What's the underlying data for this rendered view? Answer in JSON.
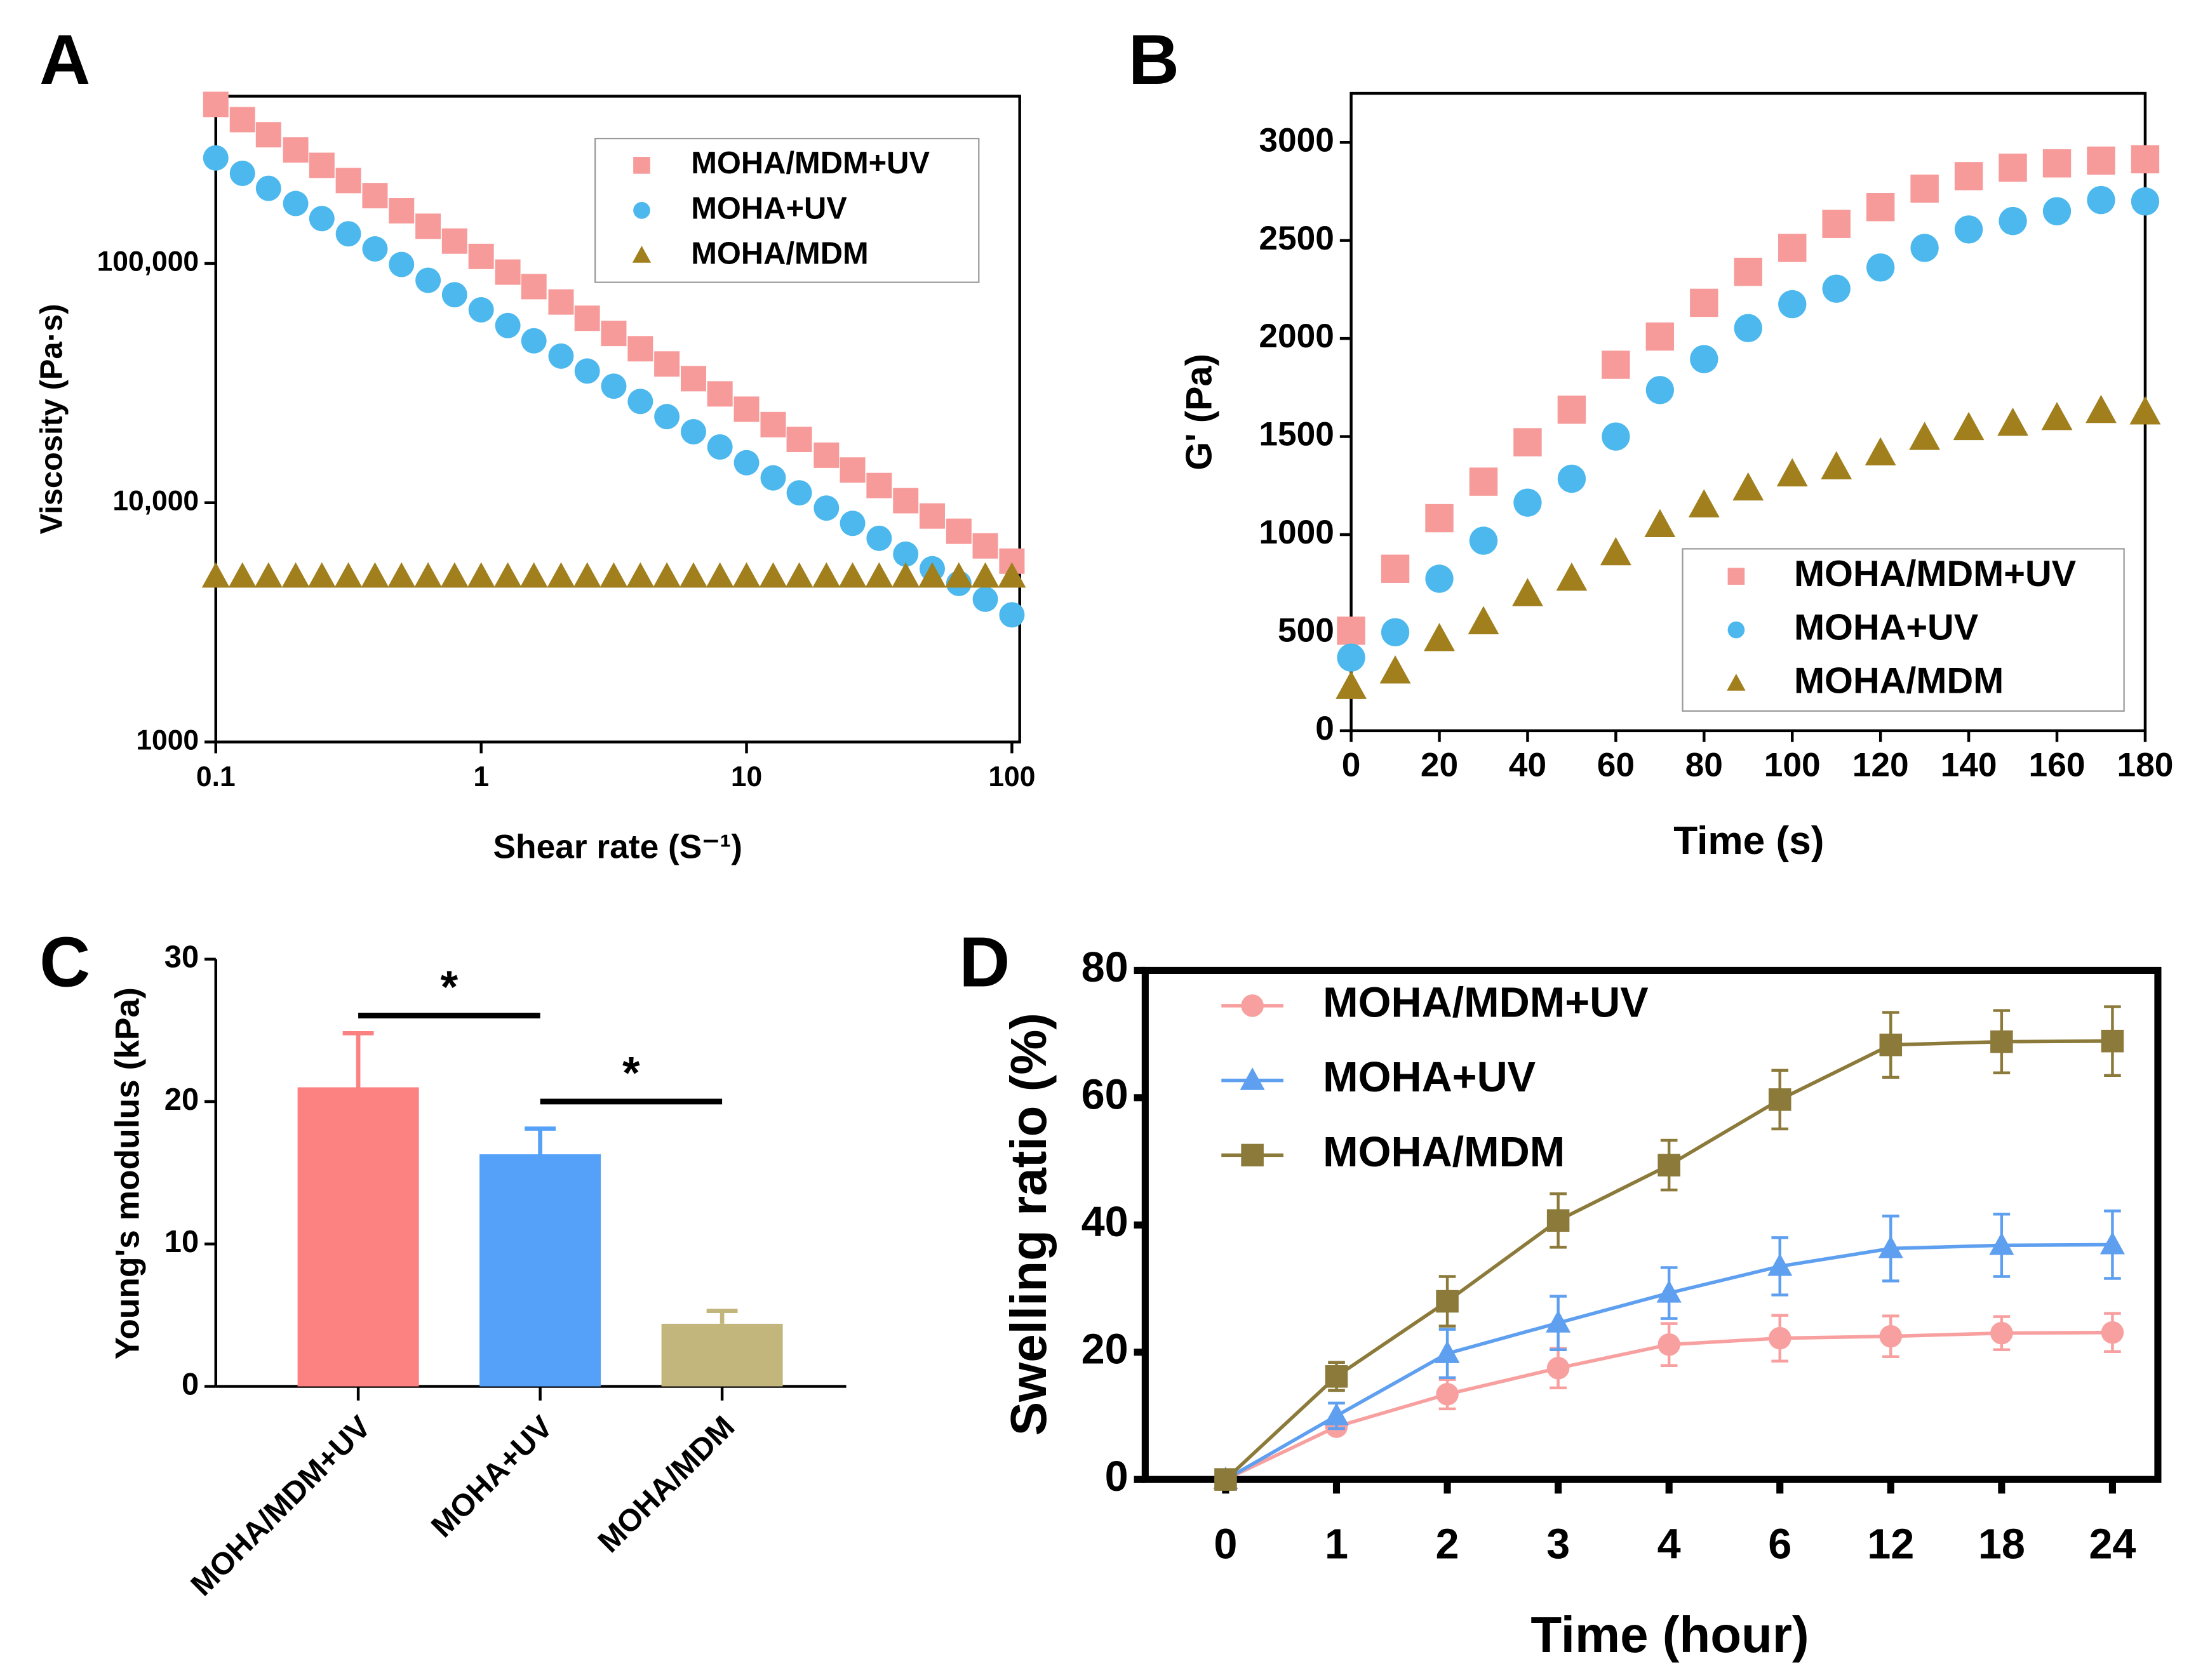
{
  "chart_data": [
    {
      "type": "scatter",
      "panel": "A",
      "x_label": "Shear rate (S⁻¹)",
      "y_label": "Viscosity (Pa·s)",
      "xscale": "log",
      "yscale": "log",
      "xlim": [
        0.1,
        107
      ],
      "ylim": [
        1000,
        500000
      ],
      "xticks": [
        0.1,
        1,
        10,
        100
      ],
      "yticks": [
        1000,
        {
          "value": 10000,
          "label": "10,000"
        },
        {
          "value": 100000,
          "label": "100,000"
        }
      ],
      "legend": "upper right",
      "x": [
        0.1,
        0.126,
        0.158,
        0.2,
        0.251,
        0.316,
        0.398,
        0.501,
        0.631,
        0.794,
        1,
        1.26,
        1.58,
        2,
        2.51,
        3.16,
        3.98,
        5.01,
        6.31,
        7.94,
        10,
        12.6,
        15.8,
        20,
        25.1,
        31.6,
        39.8,
        50.1,
        63.1,
        79.4,
        100
      ],
      "series": [
        {
          "name": "MOHA/MDM+UV",
          "color": "#f79a9a",
          "marker": "square",
          "values": [
            462000,
            399000,
            345000,
            298000,
            257000,
            222000,
            192000,
            166000,
            143000,
            124000,
            107000,
            92000,
            80000,
            69000,
            59000,
            51000,
            44000,
            38000,
            33000,
            28500,
            24600,
            21200,
            18400,
            15800,
            13700,
            11800,
            10200,
            8800,
            7600,
            6600,
            5700
          ]
        },
        {
          "name": "MOHA+UV",
          "color": "#4cb8ee",
          "marker": "circle",
          "values": [
            276000,
            238000,
            206000,
            178000,
            154000,
            133000,
            115000,
            99000,
            85000,
            74000,
            64000,
            55000,
            47500,
            41000,
            35500,
            30700,
            26500,
            22900,
            19800,
            17100,
            14700,
            12700,
            11000,
            9500,
            8200,
            7100,
            6100,
            5300,
            4600,
            3950,
            3400
          ]
        },
        {
          "name": "MOHA/MDM",
          "color": "#a07f1c",
          "marker": "triangle",
          "values": [
            4900,
            4900,
            4900,
            4900,
            4900,
            4900,
            4900,
            4900,
            4900,
            4900,
            4900,
            4900,
            4900,
            4900,
            4900,
            4900,
            4900,
            4900,
            4900,
            4900,
            4900,
            4900,
            4900,
            4900,
            4900,
            4900,
            4900,
            4900,
            4900,
            4900,
            4900
          ]
        }
      ]
    },
    {
      "type": "scatter",
      "panel": "B",
      "x_label": "Time (s)",
      "y_label": "G' (Pa)",
      "xlim": [
        0,
        180
      ],
      "ylim": [
        0,
        3250
      ],
      "xticks": [
        0,
        20,
        40,
        60,
        80,
        100,
        120,
        140,
        160,
        180
      ],
      "yticks": [
        0,
        500,
        1000,
        1500,
        2000,
        2500,
        3000
      ],
      "legend": "lower right",
      "x": [
        0,
        10,
        20,
        30,
        40,
        50,
        60,
        70,
        80,
        90,
        100,
        110,
        120,
        130,
        140,
        150,
        160,
        170,
        180
      ],
      "series": [
        {
          "name": "MOHA/MDM+UV",
          "color": "#f79a9a",
          "marker": "square",
          "values": [
            510,
            826,
            1084,
            1270,
            1471,
            1637,
            1866,
            2010,
            2182,
            2340,
            2462,
            2584,
            2670,
            2764,
            2828,
            2871,
            2893,
            2907,
            2914
          ]
        },
        {
          "name": "MOHA+UV",
          "color": "#4cb8ee",
          "marker": "circle",
          "values": [
            373,
            502,
            775,
            969,
            1163,
            1285,
            1500,
            1737,
            1895,
            2053,
            2175,
            2254,
            2362,
            2462,
            2556,
            2599,
            2649,
            2706,
            2699
          ]
        },
        {
          "name": "MOHA/MDM",
          "color": "#a07f1c",
          "marker": "triangle",
          "values": [
            223,
            302,
            467,
            553,
            696,
            775,
            905,
            1048,
            1149,
            1235,
            1307,
            1343,
            1414,
            1493,
            1543,
            1565,
            1594,
            1630,
            1623
          ]
        }
      ]
    },
    {
      "type": "bar",
      "panel": "C",
      "y_label": "Young's modulus (kPa)",
      "ylim": [
        0,
        30
      ],
      "yticks": [
        0,
        10,
        20,
        30
      ],
      "categories": [
        "MOHA/MDM+UV",
        "MOHA+UV",
        "MOHA/MDM"
      ],
      "values": [
        21,
        16.3,
        4.4
      ],
      "errors": [
        3.8,
        1.8,
        0.9
      ],
      "colors": [
        "#fc8181",
        "#55a0f8",
        "#c3b67c"
      ],
      "significance": [
        {
          "from": 0,
          "to": 1,
          "label": "*"
        },
        {
          "from": 1,
          "to": 2,
          "label": "*"
        }
      ]
    },
    {
      "type": "line",
      "panel": "D",
      "x_label": "Time (hour)",
      "y_label": "Swelling ratio (%)",
      "ylim": [
        0,
        80
      ],
      "yticks": [
        0,
        20,
        40,
        60,
        80
      ],
      "categories": [
        "0",
        "1",
        "2",
        "3",
        "4",
        "6",
        "12",
        "18",
        "24"
      ],
      "legend": "upper left",
      "series": [
        {
          "name": "MOHA/MDM+UV",
          "color": "#f8a0a0",
          "marker": "circle",
          "values": [
            0,
            8.3,
            13.4,
            17.5,
            21.2,
            22.2,
            22.5,
            23.0,
            23.1
          ],
          "errors": [
            0,
            1,
            2.3,
            3.1,
            3.3,
            3.6,
            3.2,
            2.6,
            3.0
          ]
        },
        {
          "name": "MOHA+UV",
          "color": "#5f9ff0",
          "marker": "triangle",
          "values": [
            0,
            10,
            19.8,
            24.6,
            29.3,
            33.5,
            36.3,
            36.8,
            36.9
          ],
          "errors": [
            0,
            2,
            3.8,
            4.2,
            4,
            4.5,
            5.1,
            4.9,
            5.3
          ]
        },
        {
          "name": "MOHA/MDM",
          "color": "#8b7a3a",
          "marker": "square",
          "values": [
            0,
            16.2,
            28,
            40.7,
            49.4,
            59.7,
            68.3,
            68.8,
            68.9
          ],
          "errors": [
            0,
            2.2,
            3.9,
            4.2,
            3.9,
            4.6,
            5.1,
            4.9,
            5.4
          ]
        }
      ]
    }
  ]
}
